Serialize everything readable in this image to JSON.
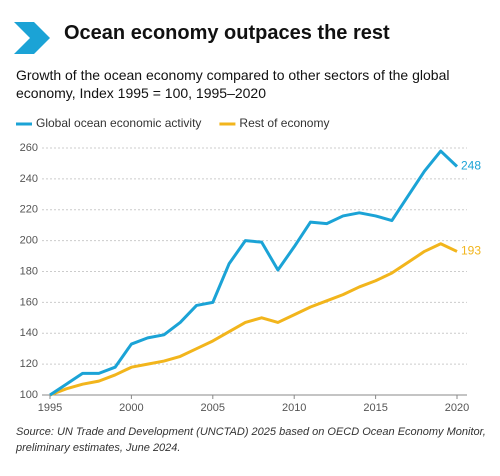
{
  "chart_data": {
    "type": "line",
    "title": "Ocean economy outpaces the rest",
    "subtitle": "Growth of the ocean economy compared to other sectors of the global economy, Index 1995 = 100, 1995–2020",
    "source": "Source: UN Trade and Development (UNCTAD) 2025 based on OECD Ocean Economy Monitor, preliminary estimates, June 2024.",
    "x": [
      1995,
      1996,
      1997,
      1998,
      1999,
      2000,
      2001,
      2002,
      2003,
      2004,
      2005,
      2006,
      2007,
      2008,
      2009,
      2010,
      2011,
      2012,
      2013,
      2014,
      2015,
      2016,
      2017,
      2018,
      2019,
      2020
    ],
    "series": [
      {
        "name": "Global ocean economic activity",
        "color": "#1ba3d6",
        "values": [
          100,
          107,
          114,
          114,
          118,
          133,
          137,
          139,
          147,
          158,
          160,
          185,
          200,
          199,
          181,
          196,
          212,
          211,
          216,
          218,
          216,
          213,
          229,
          245,
          258,
          248
        ]
      },
      {
        "name": "Rest of economy",
        "color": "#f2b51c",
        "values": [
          100,
          104,
          107,
          109,
          113,
          118,
          120,
          122,
          125,
          130,
          135,
          141,
          147,
          150,
          147,
          152,
          157,
          161,
          165,
          170,
          174,
          179,
          186,
          193,
          198,
          193
        ]
      }
    ],
    "xlim": [
      1995,
      2020
    ],
    "xticks": [
      1995,
      2000,
      2005,
      2010,
      2015,
      2020
    ],
    "ylim": [
      100,
      260
    ],
    "yticks": [
      100,
      120,
      140,
      160,
      180,
      200,
      220,
      240,
      260
    ],
    "grid": true
  }
}
